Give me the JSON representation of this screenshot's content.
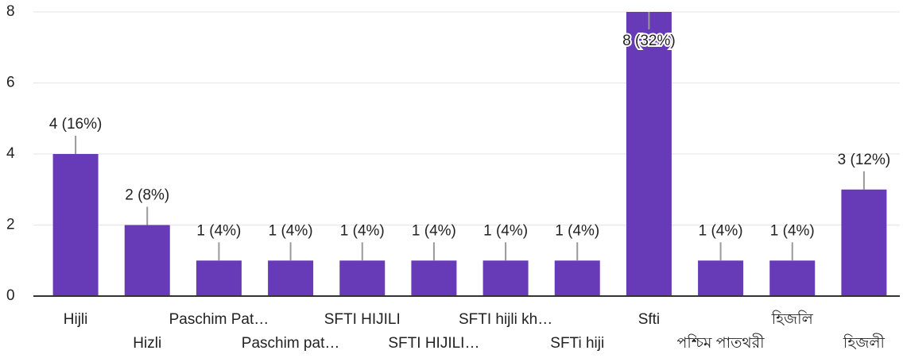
{
  "chart_data": {
    "type": "bar",
    "categories": [
      "Hijli",
      "Hizli",
      "Paschim Pat…",
      "Paschim pat…",
      "SFTI HIJILI",
      "SFTI HIJILI…",
      "SFTI hijli kh…",
      "SFTi hiji",
      "Sfti",
      "পশ্চিম পাতথরী",
      "হিজলি",
      "হিজলী"
    ],
    "values": [
      4,
      2,
      1,
      1,
      1,
      1,
      1,
      1,
      8,
      1,
      1,
      3
    ],
    "value_labels": [
      "4 (16%)",
      "2 (8%)",
      "1 (4%)",
      "1 (4%)",
      "1 (4%)",
      "1 (4%)",
      "1 (4%)",
      "1 (4%)",
      "8 (32%)",
      "1 (4%)",
      "1 (4%)",
      "3 (12%)"
    ],
    "color": "#673ab7",
    "ylim": [
      0,
      8
    ],
    "yticks": [
      0,
      2,
      4,
      6,
      8
    ],
    "grid": true
  }
}
